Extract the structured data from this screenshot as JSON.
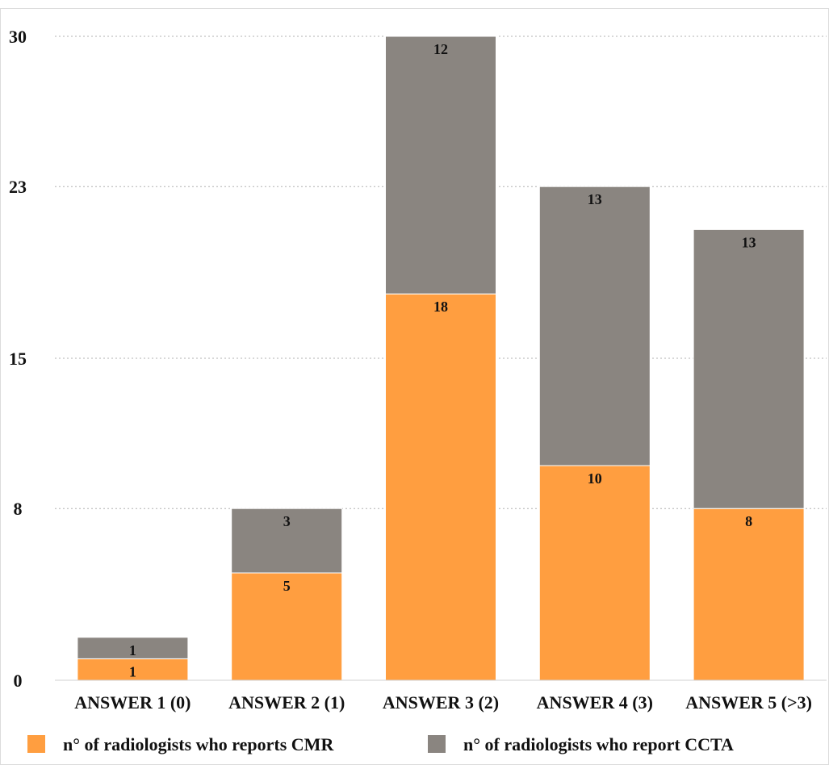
{
  "chart_data": {
    "type": "bar",
    "stacked": true,
    "categories": [
      "ANSWER 1 (0)",
      "ANSWER 2 (1)",
      "ANSWER 3 (2)",
      "ANSWER 4 (3)",
      "ANSWER 5 (>3)"
    ],
    "series": [
      {
        "name": "n° of radiologists who reports CMR",
        "values": [
          1,
          5,
          18,
          10,
          8
        ],
        "color": "#FF9E40"
      },
      {
        "name": "n° of radiologists who report CCTA",
        "values": [
          1,
          3,
          12,
          13,
          13
        ],
        "color": "#8A8580"
      }
    ],
    "yticks": [
      "0",
      "8",
      "15",
      "23",
      "30"
    ],
    "ylim": [
      0,
      30
    ],
    "grid": true,
    "legend_position": "bottom",
    "title": "",
    "xlabel": "",
    "ylabel": ""
  }
}
